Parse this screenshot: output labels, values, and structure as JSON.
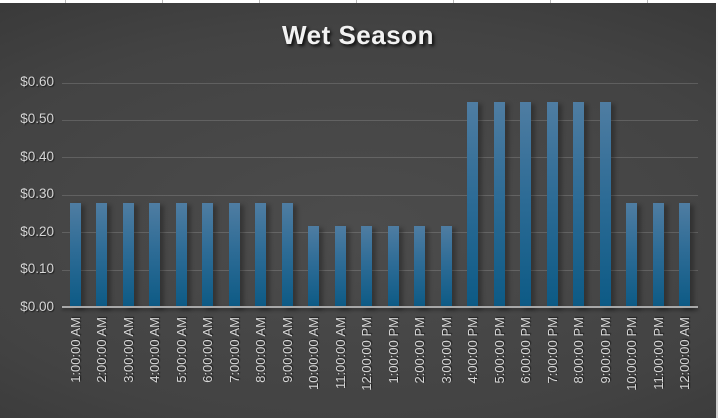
{
  "title": "Wet Season",
  "colors": {
    "bar_gradient_top": "#4f7da2",
    "bar_gradient_mid": "#2e6c96",
    "bar_gradient_bottom": "#0c5a85",
    "background_center": "#4c4c4c",
    "background_edge": "#242424",
    "gridline": "rgba(255,255,255,0.15)",
    "axis_line": "#a8a8a8",
    "tick_label": "#d6d6d6",
    "title_text": "#f2f2f2"
  },
  "chart_data": {
    "type": "bar",
    "title": "Wet Season",
    "categories": [
      "1:00:00 AM",
      "2:00:00 AM",
      "3:00:00 AM",
      "4:00:00 AM",
      "5:00:00 AM",
      "6:00:00 AM",
      "7:00:00 AM",
      "8:00:00 AM",
      "9:00:00 AM",
      "10:00:00 AM",
      "11:00:00 AM",
      "12:00:00 PM",
      "1:00:00 PM",
      "2:00:00 PM",
      "3:00:00 PM",
      "4:00:00 PM",
      "5:00:00 PM",
      "6:00:00 PM",
      "7:00:00 PM",
      "8:00:00 PM",
      "9:00:00 PM",
      "10:00:00 PM",
      "11:00:00 PM",
      "12:00:00 AM"
    ],
    "values": [
      0.28,
      0.28,
      0.28,
      0.28,
      0.28,
      0.28,
      0.28,
      0.28,
      0.28,
      0.22,
      0.22,
      0.22,
      0.22,
      0.22,
      0.22,
      0.55,
      0.55,
      0.55,
      0.55,
      0.55,
      0.55,
      0.28,
      0.28,
      0.28
    ],
    "xlabel": "",
    "ylabel": "",
    "ylim": [
      0,
      0.6
    ],
    "ytick_interval": 0.1,
    "yticks": [
      "$0.00",
      "$0.10",
      "$0.20",
      "$0.30",
      "$0.40",
      "$0.50",
      "$0.60"
    ],
    "grid": "horizontal-only",
    "legend": "none",
    "bar_orientation": "vertical",
    "x_label_rotation_deg": 90
  }
}
